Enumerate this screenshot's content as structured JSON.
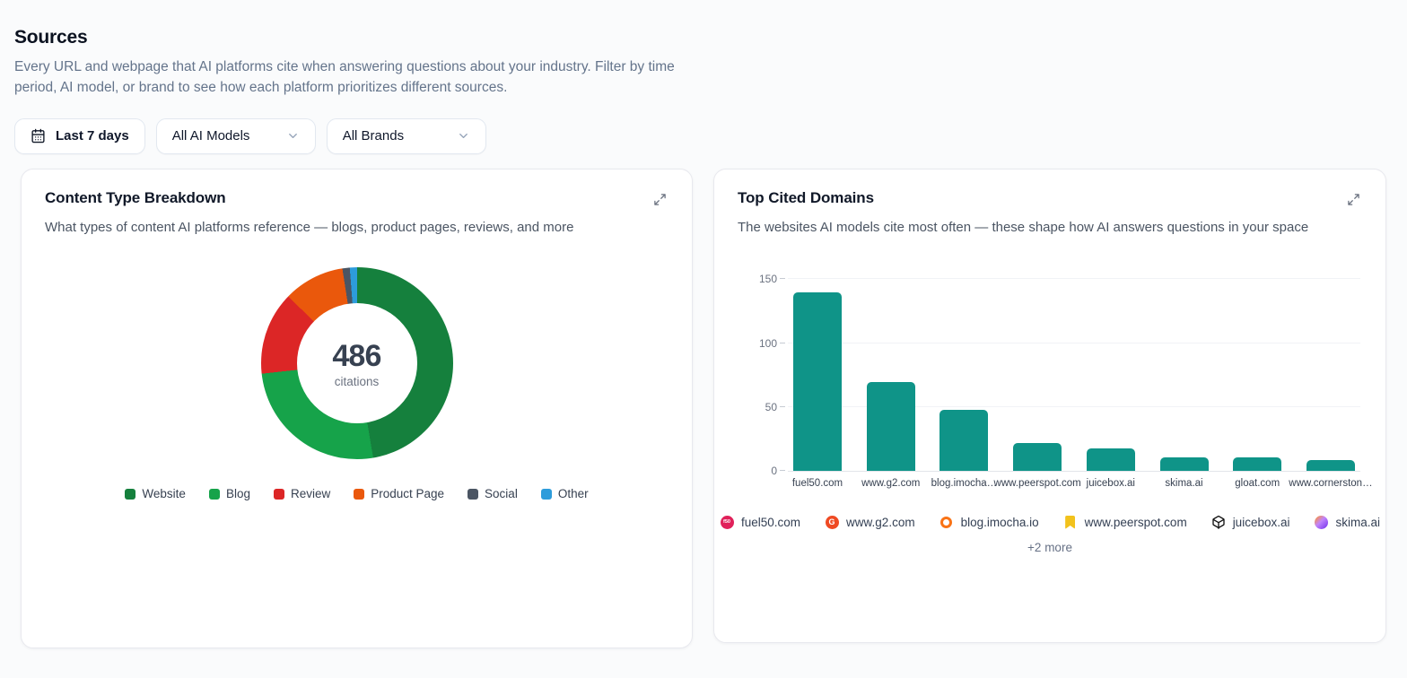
{
  "header": {
    "title": "Sources",
    "description": "Every URL and webpage that AI platforms cite when answering questions about your industry. Filter by time period, AI model, or brand to see how each platform prioritizes different sources."
  },
  "filters": {
    "date_range_label": "Last 7 days",
    "date_range_icon": "calendar-icon",
    "ai_model_label": "All AI Models",
    "brand_label": "All Brands",
    "dropdown_icon": "chevron-down-icon"
  },
  "cards": {
    "content_type": {
      "title": "Content Type Breakdown",
      "subtitle": "What types of content AI platforms reference — blogs, product pages, reviews, and more",
      "center_value": "486",
      "center_label": "citations",
      "expand_icon": "expand-icon"
    },
    "top_domains": {
      "title": "Top Cited Domains",
      "subtitle": "The websites AI models cite most often — these shape how AI answers questions in your space",
      "more_label": "+2 more",
      "expand_icon": "expand-icon"
    }
  },
  "chart_data": [
    {
      "id": "content-type-breakdown",
      "type": "pie",
      "title": "Content Type Breakdown",
      "donut": true,
      "center_total": 486,
      "center_unit": "citations",
      "legend_position": "bottom",
      "segments": [
        {
          "label": "Website",
          "value": 230,
          "color": "#15803d"
        },
        {
          "label": "Blog",
          "value": 126,
          "color": "#16a34a"
        },
        {
          "label": "Review",
          "value": 68,
          "color": "#dc2626"
        },
        {
          "label": "Product Page",
          "value": 50,
          "color": "#ea580c"
        },
        {
          "label": "Social",
          "value": 6,
          "color": "#4b5563"
        },
        {
          "label": "Other",
          "value": 6,
          "color": "#2d9cdb"
        }
      ]
    },
    {
      "id": "top-cited-domains",
      "type": "bar",
      "title": "Top Cited Domains",
      "categories": [
        "fuel50.com",
        "www.g2.com",
        "blog.imocha…",
        "www.peerspot.com",
        "juicebox.ai",
        "skima.ai",
        "gloat.com",
        "www.cornerston…"
      ],
      "values": [
        140,
        70,
        48,
        22,
        18,
        11,
        11,
        9
      ],
      "bar_color": "#0f9488",
      "xlabel": "",
      "ylabel": "",
      "ylim": [
        0,
        150
      ],
      "yticks": [
        0,
        50,
        100,
        150
      ],
      "grid": true
    }
  ],
  "cited_domains": {
    "items": [
      {
        "label": "fuel50.com",
        "icon": "fuel50-favicon",
        "color": "#e0215a",
        "glyph": "f50"
      },
      {
        "label": "www.g2.com",
        "icon": "g2-favicon",
        "color": "#ef4a23",
        "glyph": "G"
      },
      {
        "label": "blog.imocha.io",
        "icon": "imocha-favicon",
        "color": "#f97316",
        "glyph": ""
      },
      {
        "label": "www.peerspot.com",
        "icon": "peerspot-favicon",
        "color": "#f2c21c",
        "glyph": ""
      },
      {
        "label": "juicebox.ai",
        "icon": "juicebox-favicon",
        "color": "#111111",
        "glyph": ""
      },
      {
        "label": "skima.ai",
        "icon": "skima-favicon",
        "color": "#8b5cf6",
        "glyph": ""
      }
    ]
  }
}
